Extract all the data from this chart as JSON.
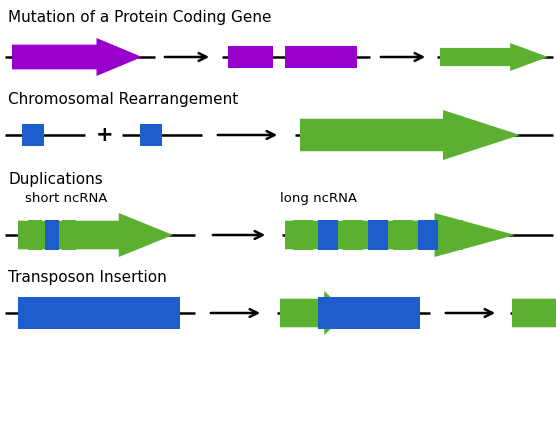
{
  "bg_color": "#ffffff",
  "purple": "#9900CC",
  "green": "#5CB030",
  "blue": "#1E5ECC",
  "text_color": "#000000",
  "sections": {
    "mutation_title": "Mutation of a Protein Coding Gene",
    "chromosomal_title": "Chromosomal Rearrangement",
    "duplications_title": "Duplications",
    "transposon_title": "Transposon Insertion",
    "short_ncrna": "short ncRNA",
    "long_ncrna": "long ncRNA"
  },
  "title_fontsize": 11,
  "label_fontsize": 9.5,
  "figsize": [
    5.56,
    4.28
  ],
  "dpi": 100
}
